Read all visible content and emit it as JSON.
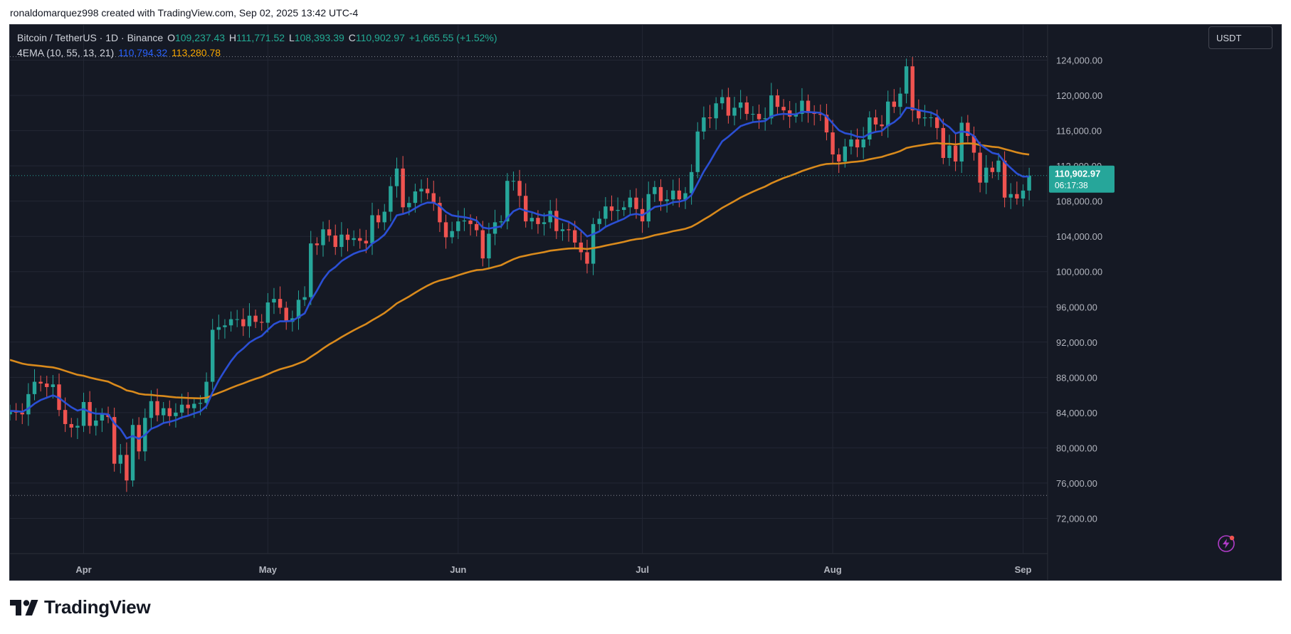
{
  "header": {
    "text": "ronaldomarquez998 created with TradingView.com, Sep 02, 2025 13:42 UTC-4"
  },
  "legend": {
    "symbol": "Bitcoin / TetherUS · 1D · Binance",
    "o_label": "O",
    "o": "109,237.43",
    "h_label": "H",
    "h": "111,771.52",
    "l_label": "L",
    "l": "108,393.39",
    "c_label": "C",
    "c": "110,902.97",
    "change": "+1,665.55 (+1.52%)",
    "indicator": "4EMA (10, 55, 13, 21)",
    "ema_fast": "110,794.32",
    "ema_slow": "113,280.78"
  },
  "currency_button": "USDT",
  "brand": {
    "name": "TradingView"
  },
  "colors": {
    "up": "#26a69a",
    "down": "#ef5350",
    "ema_fast": "#2b4fd4",
    "ema_slow": "#d98a1c",
    "background": "#151924",
    "grid": "#232734",
    "axis_text": "#b2b5be",
    "price_tag": "#26a69a"
  },
  "chart_data": {
    "type": "candlestick",
    "title": "Bitcoin / TetherUS · 1D · Binance",
    "ylim": [
      68000,
      128000
    ],
    "y_ticks": [
      72000,
      76000,
      80000,
      84000,
      88000,
      92000,
      96000,
      100000,
      104000,
      108000,
      112000,
      116000,
      120000,
      124000
    ],
    "y_tick_labels": [
      "72,000.00",
      "76,000.00",
      "80,000.00",
      "84,000.00",
      "88,000.00",
      "92,000.00",
      "96,000.00",
      "100,000.00",
      "104,000.00",
      "108,000.00",
      "112,000.00",
      "116,000.00",
      "120,000.00",
      "124,000.00"
    ],
    "x_labels": [
      {
        "label": "Apr",
        "date": "2025-04-01"
      },
      {
        "label": "May",
        "date": "2025-05-01"
      },
      {
        "label": "Jun",
        "date": "2025-06-01"
      },
      {
        "label": "Jul",
        "date": "2025-07-01"
      },
      {
        "label": "Aug",
        "date": "2025-08-01"
      },
      {
        "label": "Sep",
        "date": "2025-09-01"
      }
    ],
    "x_range": [
      "2025-03-20",
      "2025-09-05"
    ],
    "last_price": {
      "value": 110902.97,
      "label": "110,902.97",
      "countdown": "06:17:38"
    },
    "high_line": 124400,
    "low_line": 74600,
    "closes": [
      {
        "date": "2025-03-20",
        "close": 84200
      },
      {
        "date": "2025-03-21",
        "close": 84000
      },
      {
        "date": "2025-03-22",
        "close": 83800
      },
      {
        "date": "2025-03-23",
        "close": 86100
      },
      {
        "date": "2025-03-24",
        "close": 87500
      },
      {
        "date": "2025-03-25",
        "close": 87300
      },
      {
        "date": "2025-03-26",
        "close": 86900
      },
      {
        "date": "2025-03-27",
        "close": 87200
      },
      {
        "date": "2025-03-28",
        "close": 84300
      },
      {
        "date": "2025-03-29",
        "close": 82700
      },
      {
        "date": "2025-03-30",
        "close": 82300
      },
      {
        "date": "2025-03-31",
        "close": 82500
      },
      {
        "date": "2025-04-01",
        "close": 85200
      },
      {
        "date": "2025-04-02",
        "close": 82500
      },
      {
        "date": "2025-04-03",
        "close": 83100
      },
      {
        "date": "2025-04-04",
        "close": 83800
      },
      {
        "date": "2025-04-05",
        "close": 83500
      },
      {
        "date": "2025-04-06",
        "close": 78200
      },
      {
        "date": "2025-04-07",
        "close": 79200
      },
      {
        "date": "2025-04-08",
        "close": 76300
      },
      {
        "date": "2025-04-09",
        "close": 82600
      },
      {
        "date": "2025-04-10",
        "close": 79600
      },
      {
        "date": "2025-04-11",
        "close": 83400
      },
      {
        "date": "2025-04-12",
        "close": 85300
      },
      {
        "date": "2025-04-13",
        "close": 83700
      },
      {
        "date": "2025-04-14",
        "close": 84500
      },
      {
        "date": "2025-04-15",
        "close": 83600
      },
      {
        "date": "2025-04-16",
        "close": 84000
      },
      {
        "date": "2025-04-17",
        "close": 84900
      },
      {
        "date": "2025-04-18",
        "close": 84500
      },
      {
        "date": "2025-04-19",
        "close": 85000
      },
      {
        "date": "2025-04-20",
        "close": 85100
      },
      {
        "date": "2025-04-21",
        "close": 87500
      },
      {
        "date": "2025-04-22",
        "close": 93400
      },
      {
        "date": "2025-04-23",
        "close": 93700
      },
      {
        "date": "2025-04-24",
        "close": 93900
      },
      {
        "date": "2025-04-25",
        "close": 94600
      },
      {
        "date": "2025-04-26",
        "close": 94600
      },
      {
        "date": "2025-04-27",
        "close": 93800
      },
      {
        "date": "2025-04-28",
        "close": 95000
      },
      {
        "date": "2025-04-29",
        "close": 94300
      },
      {
        "date": "2025-04-30",
        "close": 94200
      },
      {
        "date": "2025-05-01",
        "close": 96500
      },
      {
        "date": "2025-05-02",
        "close": 96900
      },
      {
        "date": "2025-05-03",
        "close": 95900
      },
      {
        "date": "2025-05-04",
        "close": 94300
      },
      {
        "date": "2025-05-05",
        "close": 94700
      },
      {
        "date": "2025-05-06",
        "close": 96800
      },
      {
        "date": "2025-05-07",
        "close": 97100
      },
      {
        "date": "2025-05-08",
        "close": 103200
      },
      {
        "date": "2025-05-09",
        "close": 103000
      },
      {
        "date": "2025-05-10",
        "close": 104800
      },
      {
        "date": "2025-05-11",
        "close": 104100
      },
      {
        "date": "2025-05-12",
        "close": 102800
      },
      {
        "date": "2025-05-13",
        "close": 104200
      },
      {
        "date": "2025-05-14",
        "close": 103600
      },
      {
        "date": "2025-05-15",
        "close": 103800
      },
      {
        "date": "2025-05-16",
        "close": 103500
      },
      {
        "date": "2025-05-17",
        "close": 103200
      },
      {
        "date": "2025-05-18",
        "close": 106400
      },
      {
        "date": "2025-05-19",
        "close": 105600
      },
      {
        "date": "2025-05-20",
        "close": 106800
      },
      {
        "date": "2025-05-21",
        "close": 109700
      },
      {
        "date": "2025-05-22",
        "close": 111700
      },
      {
        "date": "2025-05-23",
        "close": 107300
      },
      {
        "date": "2025-05-24",
        "close": 107800
      },
      {
        "date": "2025-05-25",
        "close": 109100
      },
      {
        "date": "2025-05-26",
        "close": 109400
      },
      {
        "date": "2025-05-27",
        "close": 108900
      },
      {
        "date": "2025-05-28",
        "close": 107800
      },
      {
        "date": "2025-05-29",
        "close": 105600
      },
      {
        "date": "2025-05-30",
        "close": 103900
      },
      {
        "date": "2025-05-31",
        "close": 104600
      },
      {
        "date": "2025-06-01",
        "close": 105700
      },
      {
        "date": "2025-06-02",
        "close": 105800
      },
      {
        "date": "2025-06-03",
        "close": 105400
      },
      {
        "date": "2025-06-04",
        "close": 104700
      },
      {
        "date": "2025-06-05",
        "close": 101500
      },
      {
        "date": "2025-06-06",
        "close": 104300
      },
      {
        "date": "2025-06-07",
        "close": 105600
      },
      {
        "date": "2025-06-08",
        "close": 105700
      },
      {
        "date": "2025-06-09",
        "close": 110300
      },
      {
        "date": "2025-06-10",
        "close": 110300
      },
      {
        "date": "2025-06-11",
        "close": 108600
      },
      {
        "date": "2025-06-12",
        "close": 105700
      },
      {
        "date": "2025-06-13",
        "close": 106100
      },
      {
        "date": "2025-06-14",
        "close": 105400
      },
      {
        "date": "2025-06-15",
        "close": 105600
      },
      {
        "date": "2025-06-16",
        "close": 106900
      },
      {
        "date": "2025-06-17",
        "close": 104600
      },
      {
        "date": "2025-06-18",
        "close": 104800
      },
      {
        "date": "2025-06-19",
        "close": 104700
      },
      {
        "date": "2025-06-20",
        "close": 103300
      },
      {
        "date": "2025-06-21",
        "close": 102200
      },
      {
        "date": "2025-06-22",
        "close": 100900
      },
      {
        "date": "2025-06-23",
        "close": 105400
      },
      {
        "date": "2025-06-24",
        "close": 106000
      },
      {
        "date": "2025-06-25",
        "close": 107400
      },
      {
        "date": "2025-06-26",
        "close": 106900
      },
      {
        "date": "2025-06-27",
        "close": 107000
      },
      {
        "date": "2025-06-28",
        "close": 107300
      },
      {
        "date": "2025-06-29",
        "close": 108400
      },
      {
        "date": "2025-06-30",
        "close": 107100
      },
      {
        "date": "2025-07-01",
        "close": 105700
      },
      {
        "date": "2025-07-02",
        "close": 108800
      },
      {
        "date": "2025-07-03",
        "close": 109600
      },
      {
        "date": "2025-07-04",
        "close": 108000
      },
      {
        "date": "2025-07-05",
        "close": 108200
      },
      {
        "date": "2025-07-06",
        "close": 109200
      },
      {
        "date": "2025-07-07",
        "close": 108200
      },
      {
        "date": "2025-07-08",
        "close": 108900
      },
      {
        "date": "2025-07-09",
        "close": 111300
      },
      {
        "date": "2025-07-10",
        "close": 115900
      },
      {
        "date": "2025-07-11",
        "close": 117500
      },
      {
        "date": "2025-07-12",
        "close": 117400
      },
      {
        "date": "2025-07-13",
        "close": 119100
      },
      {
        "date": "2025-07-14",
        "close": 119800
      },
      {
        "date": "2025-07-15",
        "close": 117700
      },
      {
        "date": "2025-07-16",
        "close": 118600
      },
      {
        "date": "2025-07-17",
        "close": 119200
      },
      {
        "date": "2025-07-18",
        "close": 117900
      },
      {
        "date": "2025-07-19",
        "close": 117900
      },
      {
        "date": "2025-07-20",
        "close": 117300
      },
      {
        "date": "2025-07-21",
        "close": 117400
      },
      {
        "date": "2025-07-22",
        "close": 120000
      },
      {
        "date": "2025-07-23",
        "close": 118700
      },
      {
        "date": "2025-07-24",
        "close": 118300
      },
      {
        "date": "2025-07-25",
        "close": 117600
      },
      {
        "date": "2025-07-26",
        "close": 117900
      },
      {
        "date": "2025-07-27",
        "close": 119400
      },
      {
        "date": "2025-07-28",
        "close": 118000
      },
      {
        "date": "2025-07-29",
        "close": 117900
      },
      {
        "date": "2025-07-30",
        "close": 117800
      },
      {
        "date": "2025-07-31",
        "close": 115800
      },
      {
        "date": "2025-08-01",
        "close": 113300
      },
      {
        "date": "2025-08-02",
        "close": 112500
      },
      {
        "date": "2025-08-03",
        "close": 114200
      },
      {
        "date": "2025-08-04",
        "close": 115000
      },
      {
        "date": "2025-08-05",
        "close": 114100
      },
      {
        "date": "2025-08-06",
        "close": 115000
      },
      {
        "date": "2025-08-07",
        "close": 117500
      },
      {
        "date": "2025-08-08",
        "close": 116700
      },
      {
        "date": "2025-08-09",
        "close": 116500
      },
      {
        "date": "2025-08-10",
        "close": 119300
      },
      {
        "date": "2025-08-11",
        "close": 118700
      },
      {
        "date": "2025-08-12",
        "close": 120200
      },
      {
        "date": "2025-08-13",
        "close": 123300
      },
      {
        "date": "2025-08-14",
        "close": 118300
      },
      {
        "date": "2025-08-15",
        "close": 117400
      },
      {
        "date": "2025-08-16",
        "close": 117500
      },
      {
        "date": "2025-08-17",
        "close": 117500
      },
      {
        "date": "2025-08-18",
        "close": 116300
      },
      {
        "date": "2025-08-19",
        "close": 112900
      },
      {
        "date": "2025-08-20",
        "close": 114300
      },
      {
        "date": "2025-08-21",
        "close": 112500
      },
      {
        "date": "2025-08-22",
        "close": 116900
      },
      {
        "date": "2025-08-23",
        "close": 115400
      },
      {
        "date": "2025-08-24",
        "close": 113500
      },
      {
        "date": "2025-08-25",
        "close": 110100
      },
      {
        "date": "2025-08-26",
        "close": 111800
      },
      {
        "date": "2025-08-27",
        "close": 111300
      },
      {
        "date": "2025-08-28",
        "close": 112600
      },
      {
        "date": "2025-08-29",
        "close": 108400
      },
      {
        "date": "2025-08-30",
        "close": 108800
      },
      {
        "date": "2025-08-31",
        "close": 108300
      },
      {
        "date": "2025-09-01",
        "close": 109200
      },
      {
        "date": "2025-09-02",
        "close": 110903
      }
    ],
    "series": [
      {
        "name": "EMA 10",
        "color": "#2b4fd4",
        "last": 110794.32
      },
      {
        "name": "EMA 55",
        "color": "#d98a1c",
        "last": 113280.78
      }
    ]
  }
}
